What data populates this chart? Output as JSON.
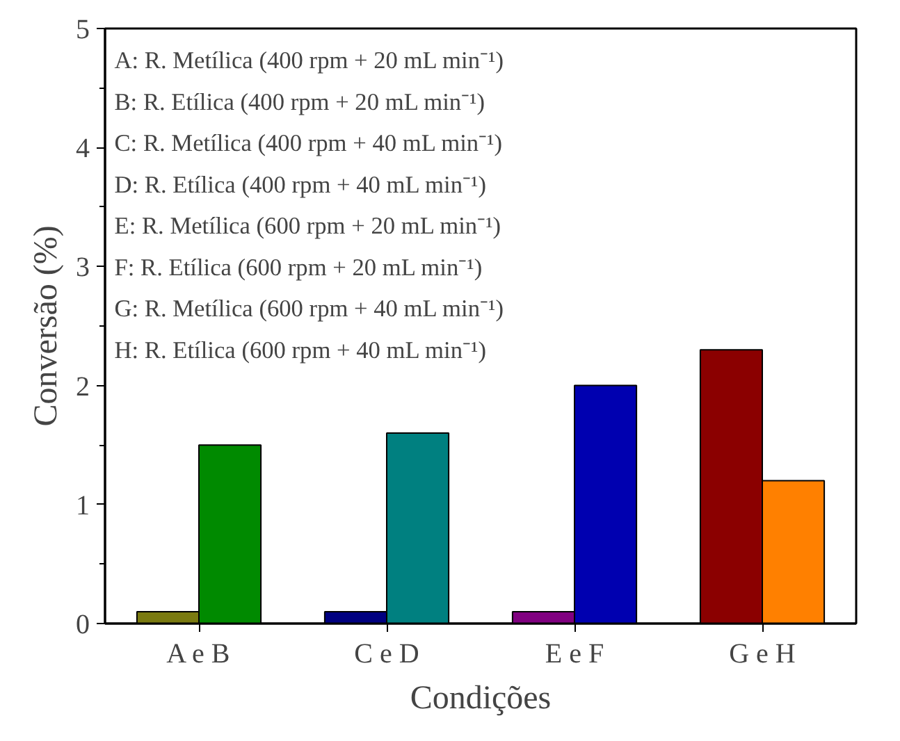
{
  "chart_data": {
    "type": "bar",
    "xlabel": "Condições",
    "ylabel": "Conversão (%)",
    "categories": [
      "A e B",
      "C e D",
      "E e F",
      "G e H"
    ],
    "series": [
      {
        "colors": [
          "#7a7a10",
          "#000080",
          "#800080",
          "#8b0000"
        ],
        "values": [
          0.1,
          0.1,
          0.1,
          2.3
        ]
      },
      {
        "colors": [
          "#008a00",
          "#008080",
          "#0000b0",
          "#ff8000"
        ],
        "values": [
          1.5,
          1.6,
          2.0,
          1.2
        ]
      }
    ],
    "ylim": [
      0,
      5
    ],
    "yticks": [
      0,
      1,
      2,
      3,
      4,
      5
    ],
    "grid": false,
    "annotations": [
      "A: R. Metílica (400 rpm + 20 mL min⁻¹)",
      "B: R. Etílica (400 rpm + 20 mL min⁻¹)",
      "C: R. Metílica (400 rpm + 40 mL min⁻¹)",
      "D: R. Etílica (400 rpm + 40 mL min⁻¹)",
      "E: R. Metílica (600 rpm + 20 mL min⁻¹)",
      "F: R. Etílica (600 rpm + 20 mL min⁻¹)",
      "G: R. Metílica (600 rpm + 40 mL min⁻¹)",
      "H: R. Etílica (600 rpm + 40 mL min⁻¹)"
    ]
  }
}
